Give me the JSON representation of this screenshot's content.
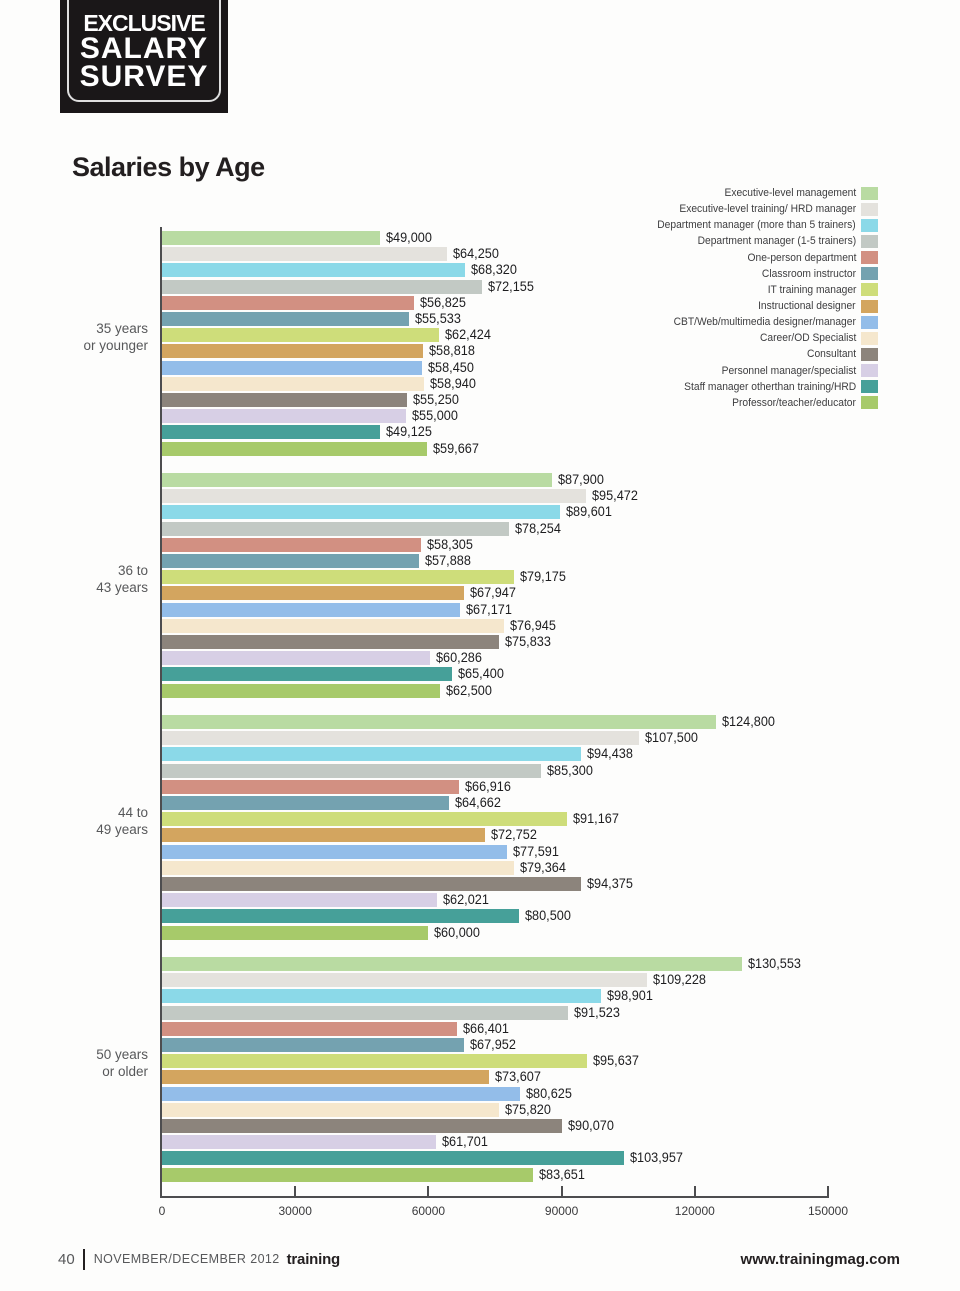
{
  "badge": {
    "lines": [
      "EXCLUSIVE",
      "SALARY",
      "SURVEY"
    ]
  },
  "title": "Salaries by Age",
  "chart_data": {
    "type": "bar",
    "orientation": "horizontal",
    "title": "Salaries by Age",
    "xlabel": "",
    "ylabel": "",
    "xlim": [
      0,
      150000
    ],
    "xticks": [
      0,
      30000,
      60000,
      90000,
      120000,
      150000
    ],
    "grid": false,
    "legend_position": "top-right",
    "value_label_format": "$#,###",
    "categories": [
      {
        "label": "Executive-level management",
        "color": "#b9dba2"
      },
      {
        "label": "Executive-level training/ HRD manager",
        "color": "#e4e2dd"
      },
      {
        "label": "Department manager (more than 5 trainers)",
        "color": "#8bd9e8"
      },
      {
        "label": "Department manager (1-5 trainers)",
        "color": "#c2c9c4"
      },
      {
        "label": "One-person department",
        "color": "#d29082"
      },
      {
        "label": "Classroom instructor",
        "color": "#74a2b0"
      },
      {
        "label": "IT training manager",
        "color": "#cedd7a"
      },
      {
        "label": "Instructional designer",
        "color": "#d3a55f"
      },
      {
        "label": "CBT/Web/multimedia designer/manager",
        "color": "#93bde9"
      },
      {
        "label": "Career/OD Specialist",
        "color": "#f5e7cd"
      },
      {
        "label": "Consultant",
        "color": "#8c847c"
      },
      {
        "label": "Personnel manager/specialist",
        "color": "#d7cfe5"
      },
      {
        "label": "Staff manager otherthan training/HRD",
        "color": "#46a099"
      },
      {
        "label": "Professor/teacher/educator",
        "color": "#a7ca6a"
      }
    ],
    "groups": [
      {
        "label_lines": [
          "35 years",
          "or younger"
        ],
        "values": [
          49000,
          64250,
          68320,
          72155,
          56825,
          55533,
          62424,
          58818,
          58450,
          58940,
          55250,
          55000,
          49125,
          59667
        ]
      },
      {
        "label_lines": [
          "36 to",
          "43 years"
        ],
        "values": [
          87900,
          95472,
          89601,
          78254,
          58305,
          57888,
          79175,
          67947,
          67171,
          76945,
          75833,
          60286,
          65400,
          62500
        ]
      },
      {
        "label_lines": [
          "44 to",
          "49 years"
        ],
        "values": [
          124800,
          107500,
          94438,
          85300,
          66916,
          64662,
          91167,
          72752,
          77591,
          79364,
          94375,
          62021,
          80500,
          60000
        ]
      },
      {
        "label_lines": [
          "50 years",
          "or older"
        ],
        "values": [
          130553,
          109228,
          98901,
          91523,
          66401,
          67952,
          95637,
          73607,
          80625,
          75820,
          90070,
          61701,
          103957,
          83651
        ]
      }
    ]
  },
  "footer": {
    "page_number": "40",
    "issue": "NOVEMBER/DECEMBER 2012",
    "brand": "training",
    "website": "www.trainingmag.com"
  }
}
